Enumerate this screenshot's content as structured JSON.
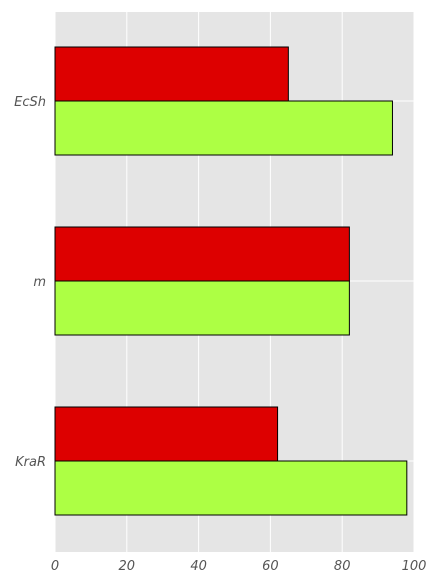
{
  "chart_data": {
    "type": "bar",
    "orientation": "horizontal",
    "categories": [
      "EcSh",
      "m",
      "KraR"
    ],
    "series": [
      {
        "values": [
          65,
          82,
          62
        ],
        "color": "#dd0000"
      },
      {
        "values": [
          94,
          82,
          98
        ],
        "color": "#adff44"
      }
    ],
    "xlim": [
      0,
      100
    ],
    "x_ticks": [
      "0",
      "20",
      "40",
      "60",
      "80",
      "100"
    ],
    "grid": true,
    "background": "#e5e5e5",
    "grid_color": "#ffffff",
    "legend": "none"
  }
}
